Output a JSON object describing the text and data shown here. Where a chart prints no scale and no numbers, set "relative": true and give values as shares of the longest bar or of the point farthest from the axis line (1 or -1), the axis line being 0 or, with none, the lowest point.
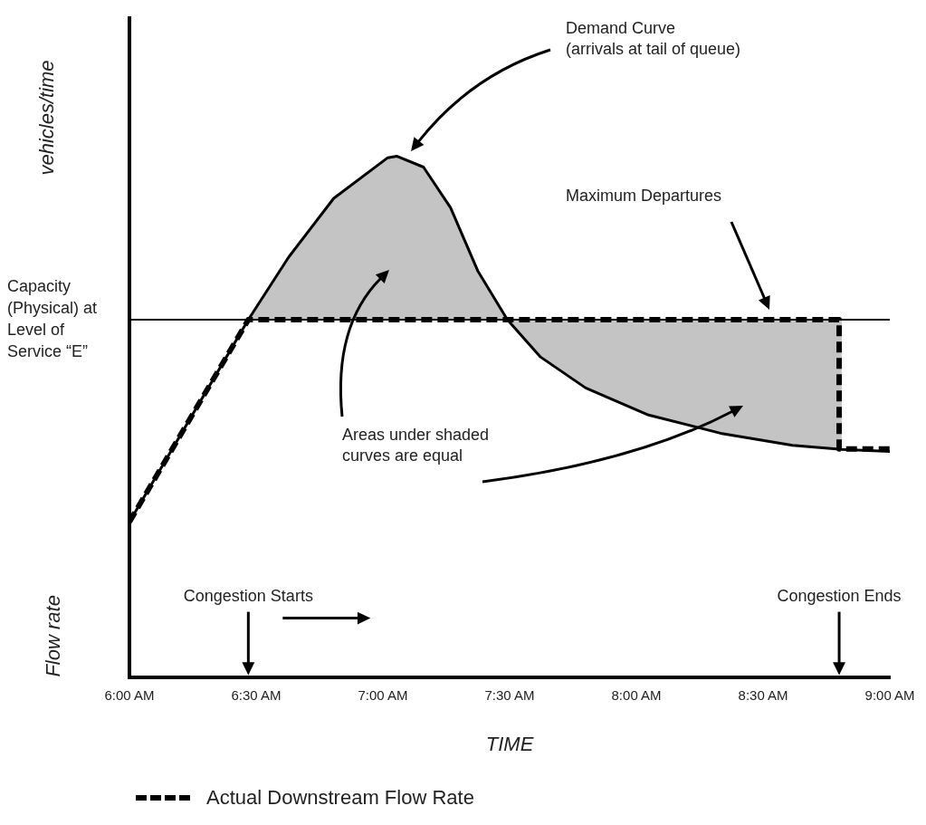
{
  "chart_data": {
    "type": "line",
    "relative": true,
    "xlabel": "TIME",
    "ylabel": "Flow rate",
    "legend": "bottom left",
    "xlim": [
      6,
      9
    ],
    "xticks": [
      {
        "value": 6,
        "label": "6:00 AM"
      },
      {
        "value": 6.5,
        "label": "6:30 AM"
      },
      {
        "value": 7,
        "label": "7:00 AM"
      },
      {
        "value": 7.5,
        "label": "7:30 AM"
      },
      {
        "value": 8,
        "label": "8:00 AM"
      },
      {
        "value": 8.5,
        "label": "8:30 AM"
      },
      {
        "value": 9,
        "label": "9:00 AM"
      }
    ],
    "series": [
      {
        "color": "#000000",
        "line_style": "solid",
        "x": [
          6.0,
          6.469,
          6.628,
          6.806,
          7.019,
          7.054,
          7.16,
          7.267,
          7.374,
          7.491,
          7.62,
          7.8,
          8.048,
          8.332,
          8.616,
          8.81,
          9.0
        ],
        "values": [
          0.298,
          0.686,
          0.806,
          0.919,
          0.997,
          1.0,
          0.979,
          0.901,
          0.78,
          0.686,
          0.615,
          0.555,
          0.503,
          0.468,
          0.445,
          0.437,
          0.433
        ],
        "lower": [
          null,
          0.686,
          0.686,
          0.686,
          0.686,
          0.686,
          0.686,
          0.686,
          0.686,
          0.686,
          0.615,
          0.555,
          0.503,
          0.468,
          0.445,
          0.437,
          null
        ],
        "upper": [
          null,
          0.686,
          0.806,
          0.919,
          0.997,
          1.0,
          0.979,
          0.901,
          0.78,
          0.686,
          0.686,
          0.686,
          0.686,
          0.686,
          0.686,
          0.686,
          null
        ]
      },
      {
        "name": "Actual Downstream Flow Rate",
        "color": "#000000",
        "line_style": "dashed",
        "x": [
          6.0,
          6.469,
          8.8,
          8.8,
          9.0
        ],
        "values": [
          0.298,
          0.686,
          0.686,
          0.438,
          0.438
        ]
      }
    ],
    "ref_lines": [
      {
        "axis": "y",
        "value": 0.686,
        "label": "Capacity (Physical) at Level of Service “E”"
      }
    ],
    "annotations": [
      "vehicles/time",
      "Demand Curve (arrivals at tail of queue)",
      "Maximum Departures",
      "Areas under shaded curves are equal",
      "Congestion Starts",
      "Congestion Ends"
    ]
  }
}
